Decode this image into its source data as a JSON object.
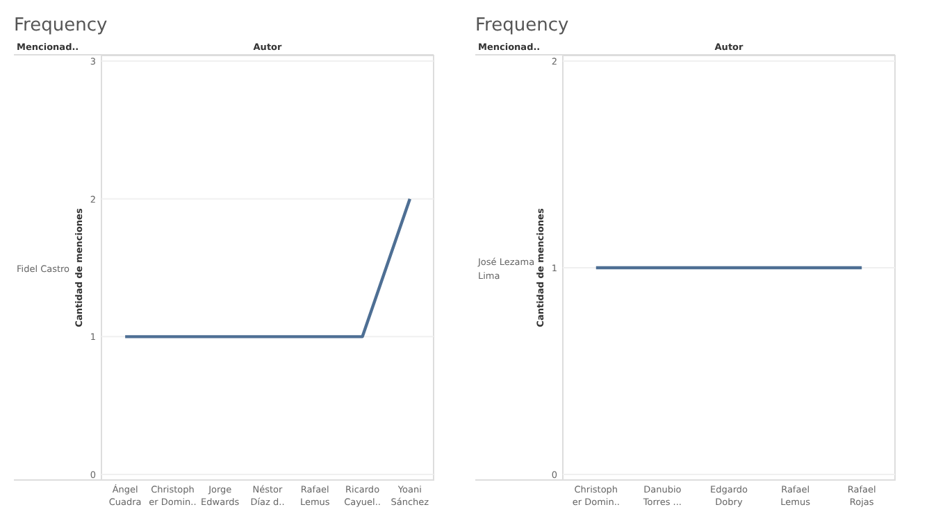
{
  "chart_data": [
    {
      "type": "line",
      "title": "Frequency",
      "xlabel": "Autor",
      "ylabel": "Cantidad de menciones",
      "annotations": [
        "Mencionad..",
        "Fidel Castro"
      ],
      "categories": [
        "Ángel Cuadra",
        "Christopher Domin..",
        "Jorge Edwards",
        "Néstor Díaz d..",
        "Rafael Lemus",
        "Ricardo Cayuel..",
        "Yoani Sánchez"
      ],
      "series": [
        {
          "color": "#4e6f94",
          "values": [
            1,
            1,
            1,
            1,
            1,
            1,
            2
          ]
        }
      ],
      "ylim": [
        0,
        3
      ],
      "yticks": [
        0,
        1,
        2,
        3
      ],
      "grid": "y",
      "marker": "none",
      "line_style": "solid"
    },
    {
      "type": "line",
      "title": "Frequency",
      "xlabel": "Autor",
      "ylabel": "Cantidad de menciones",
      "annotations": [
        "Mencionad..",
        "José Lezama Lima"
      ],
      "categories": [
        "Christopher Domin..",
        "Danubio Torres ...",
        "Edgardo Dobry",
        "Rafael Lemus",
        "Rafael Rojas"
      ],
      "series": [
        {
          "color": "#4e6f94",
          "values": [
            1,
            1,
            1,
            1,
            1
          ]
        }
      ],
      "ylim": [
        0,
        2
      ],
      "yticks": [
        0,
        1,
        2
      ],
      "grid": "y",
      "marker": "none",
      "line_style": "solid"
    }
  ]
}
